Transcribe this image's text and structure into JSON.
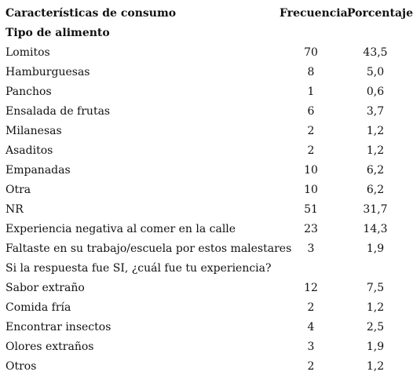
{
  "header": {
    "characteristic": "Características de consumo",
    "frequency": "Frecuencia",
    "percentage": "Porcentaje"
  },
  "rows": [
    {
      "label": "Tipo de alimento",
      "freq": "",
      "pct": "",
      "section": true
    },
    {
      "label": "Lomitos",
      "freq": "70",
      "pct": "43,5"
    },
    {
      "label": "Hamburguesas",
      "freq": "8",
      "pct": "5,0"
    },
    {
      "label": "Panchos",
      "freq": "1",
      "pct": "0,6"
    },
    {
      "label": "Ensalada de frutas",
      "freq": "6",
      "pct": "3,7"
    },
    {
      "label": "Milanesas",
      "freq": "2",
      "pct": "1,2"
    },
    {
      "label": "Asaditos",
      "freq": "2",
      "pct": "1,2"
    },
    {
      "label": "Empanadas",
      "freq": "10",
      "pct": "6,2"
    },
    {
      "label": "Otra",
      "freq": "10",
      "pct": "6,2"
    },
    {
      "label": "NR",
      "freq": "51",
      "pct": "31,7"
    },
    {
      "label": "Experiencia negativa al comer en la calle",
      "freq": "23",
      "pct": "14,3"
    },
    {
      "label": "Faltaste en su trabajo/escuela por estos malestares",
      "freq": "3",
      "pct": "1,9"
    },
    {
      "label": "Si la respuesta fue SI, ¿cuál fue tu experiencia?",
      "freq": "",
      "pct": ""
    },
    {
      "label": "Sabor extraño",
      "freq": "12",
      "pct": "7,5"
    },
    {
      "label": "Comida fría",
      "freq": "2",
      "pct": "1,2"
    },
    {
      "label": "Encontrar insectos",
      "freq": "4",
      "pct": "2,5"
    },
    {
      "label": "Olores extraños",
      "freq": "3",
      "pct": "1,9"
    },
    {
      "label": "Otros",
      "freq": "2",
      "pct": "1,2"
    }
  ]
}
